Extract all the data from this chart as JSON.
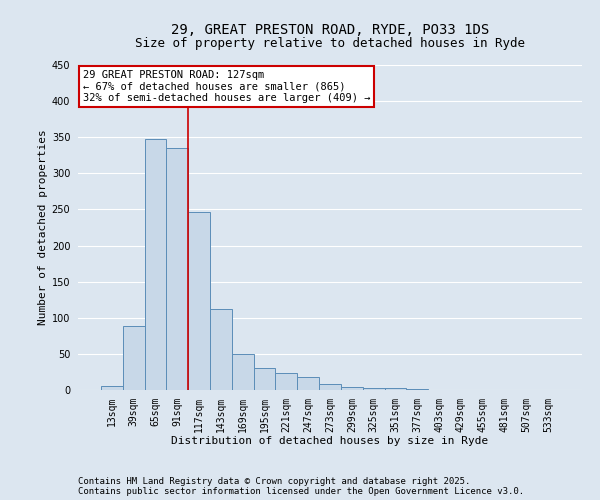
{
  "title_line1": "29, GREAT PRESTON ROAD, RYDE, PO33 1DS",
  "title_line2": "Size of property relative to detached houses in Ryde",
  "xlabel": "Distribution of detached houses by size in Ryde",
  "ylabel": "Number of detached properties",
  "categories": [
    "13sqm",
    "39sqm",
    "65sqm",
    "91sqm",
    "117sqm",
    "143sqm",
    "169sqm",
    "195sqm",
    "221sqm",
    "247sqm",
    "273sqm",
    "299sqm",
    "325sqm",
    "351sqm",
    "377sqm",
    "403sqm",
    "429sqm",
    "455sqm",
    "481sqm",
    "507sqm",
    "533sqm"
  ],
  "values": [
    5,
    88,
    348,
    335,
    246,
    112,
    50,
    30,
    24,
    18,
    8,
    4,
    3,
    3,
    2,
    0,
    0,
    0,
    0,
    0,
    0
  ],
  "bar_color": "#c8d8e8",
  "bar_edge_color": "#5b8db8",
  "highlight_line_index": 4,
  "highlight_line_color": "#cc0000",
  "ylim": [
    0,
    450
  ],
  "yticks": [
    0,
    50,
    100,
    150,
    200,
    250,
    300,
    350,
    400,
    450
  ],
  "annotation_text": "29 GREAT PRESTON ROAD: 127sqm\n← 67% of detached houses are smaller (865)\n32% of semi-detached houses are larger (409) →",
  "annotation_box_facecolor": "#ffffff",
  "annotation_box_edgecolor": "#cc0000",
  "footnote1": "Contains HM Land Registry data © Crown copyright and database right 2025.",
  "footnote2": "Contains public sector information licensed under the Open Government Licence v3.0.",
  "background_color": "#dce6f0",
  "plot_bg_color": "#dce6f0",
  "grid_color": "#ffffff",
  "title_fontsize": 10,
  "subtitle_fontsize": 9,
  "axis_label_fontsize": 8,
  "tick_fontsize": 7,
  "footnote_fontsize": 6.5,
  "annotation_fontsize": 7.5
}
